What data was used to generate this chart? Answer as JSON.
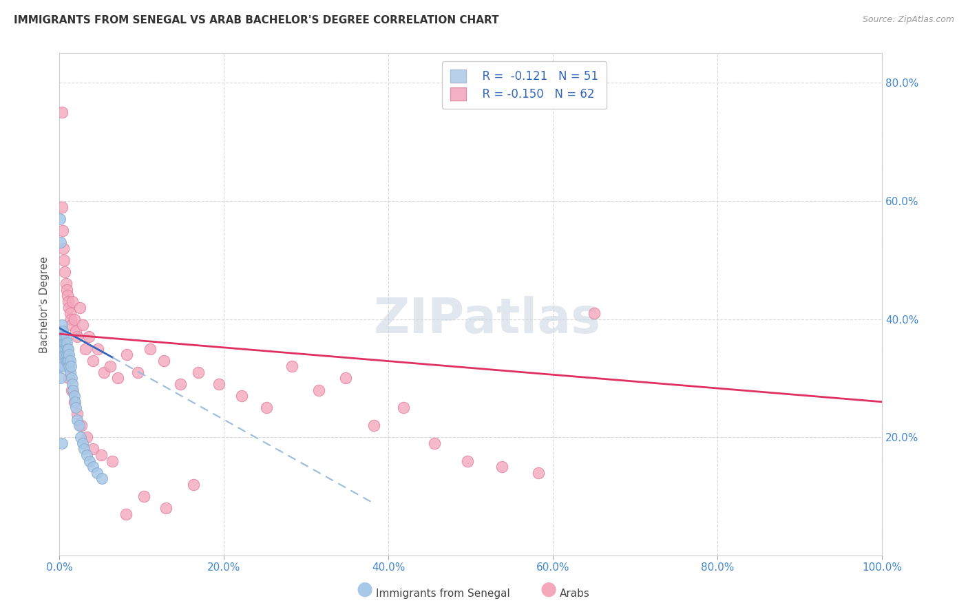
{
  "title": "IMMIGRANTS FROM SENEGAL VS ARAB BACHELOR'S DEGREE CORRELATION CHART",
  "source": "Source: ZipAtlas.com",
  "ylabel": "Bachelor's Degree",
  "xlim": [
    0.0,
    1.0
  ],
  "ylim": [
    0.0,
    0.85
  ],
  "xtick_vals": [
    0.0,
    0.2,
    0.4,
    0.6,
    0.8,
    1.0
  ],
  "xtick_labels": [
    "0.0%",
    "20.0%",
    "40.0%",
    "60.0%",
    "80.0%",
    "100.0%"
  ],
  "ytick_vals_right": [
    0.2,
    0.4,
    0.6,
    0.8
  ],
  "ytick_labels_right": [
    "20.0%",
    "40.0%",
    "60.0%",
    "80.0%"
  ],
  "background_color": "#ffffff",
  "grid_color": "#d8d8d8",
  "watermark_text": "ZIPatlas",
  "watermark_color": "#ccd8e4",
  "color_senegal": "#a8c8e8",
  "color_senegal_edge": "#88aacc",
  "color_arab": "#f4a8bc",
  "color_arab_edge": "#e080a0",
  "trendline_senegal_color": "#3366bb",
  "trendline_arab_color": "#e03060",
  "trendline_senegal_dashed_color": "#99bbdd",
  "senegal_x": [
    0.001,
    0.001,
    0.002,
    0.002,
    0.002,
    0.003,
    0.003,
    0.003,
    0.004,
    0.004,
    0.004,
    0.005,
    0.005,
    0.005,
    0.006,
    0.006,
    0.007,
    0.007,
    0.008,
    0.008,
    0.008,
    0.009,
    0.009,
    0.01,
    0.01,
    0.011,
    0.011,
    0.012,
    0.012,
    0.013,
    0.013,
    0.014,
    0.015,
    0.016,
    0.017,
    0.018,
    0.019,
    0.02,
    0.022,
    0.024,
    0.026,
    0.028,
    0.03,
    0.033,
    0.037,
    0.041,
    0.046,
    0.052,
    0.001,
    0.002,
    0.003
  ],
  "senegal_y": [
    0.36,
    0.32,
    0.38,
    0.35,
    0.3,
    0.39,
    0.37,
    0.33,
    0.38,
    0.36,
    0.34,
    0.37,
    0.35,
    0.32,
    0.37,
    0.35,
    0.36,
    0.34,
    0.37,
    0.35,
    0.33,
    0.36,
    0.34,
    0.35,
    0.33,
    0.35,
    0.33,
    0.34,
    0.32,
    0.33,
    0.31,
    0.32,
    0.3,
    0.29,
    0.28,
    0.27,
    0.26,
    0.25,
    0.23,
    0.22,
    0.2,
    0.19,
    0.18,
    0.17,
    0.16,
    0.15,
    0.14,
    0.13,
    0.57,
    0.53,
    0.19
  ],
  "arab_x": [
    0.003,
    0.004,
    0.005,
    0.006,
    0.007,
    0.008,
    0.009,
    0.01,
    0.011,
    0.012,
    0.013,
    0.014,
    0.015,
    0.016,
    0.018,
    0.02,
    0.022,
    0.025,
    0.028,
    0.032,
    0.036,
    0.041,
    0.047,
    0.054,
    0.062,
    0.071,
    0.082,
    0.095,
    0.11,
    0.127,
    0.147,
    0.169,
    0.194,
    0.222,
    0.252,
    0.283,
    0.315,
    0.348,
    0.382,
    0.418,
    0.456,
    0.496,
    0.538,
    0.582,
    0.006,
    0.008,
    0.01,
    0.012,
    0.015,
    0.018,
    0.022,
    0.027,
    0.033,
    0.041,
    0.051,
    0.064,
    0.081,
    0.103,
    0.13,
    0.163,
    0.65,
    0.003
  ],
  "arab_y": [
    0.59,
    0.55,
    0.52,
    0.5,
    0.48,
    0.46,
    0.45,
    0.44,
    0.43,
    0.42,
    0.41,
    0.4,
    0.39,
    0.43,
    0.4,
    0.38,
    0.37,
    0.42,
    0.39,
    0.35,
    0.37,
    0.33,
    0.35,
    0.31,
    0.32,
    0.3,
    0.34,
    0.31,
    0.35,
    0.33,
    0.29,
    0.31,
    0.29,
    0.27,
    0.25,
    0.32,
    0.28,
    0.3,
    0.22,
    0.25,
    0.19,
    0.16,
    0.15,
    0.14,
    0.36,
    0.34,
    0.32,
    0.3,
    0.28,
    0.26,
    0.24,
    0.22,
    0.2,
    0.18,
    0.17,
    0.16,
    0.07,
    0.1,
    0.08,
    0.12,
    0.41,
    0.75
  ],
  "trendline_sen_x0": 0.0,
  "trendline_sen_x1": 0.065,
  "trendline_sen_y0": 0.385,
  "trendline_sen_y1": 0.335,
  "trendline_dash_x0": 0.065,
  "trendline_dash_x1": 0.38,
  "trendline_dash_y0": 0.335,
  "trendline_dash_y1": 0.09,
  "trendline_arab_x0": 0.0,
  "trendline_arab_x1": 1.0,
  "trendline_arab_y0": 0.375,
  "trendline_arab_y1": 0.26
}
